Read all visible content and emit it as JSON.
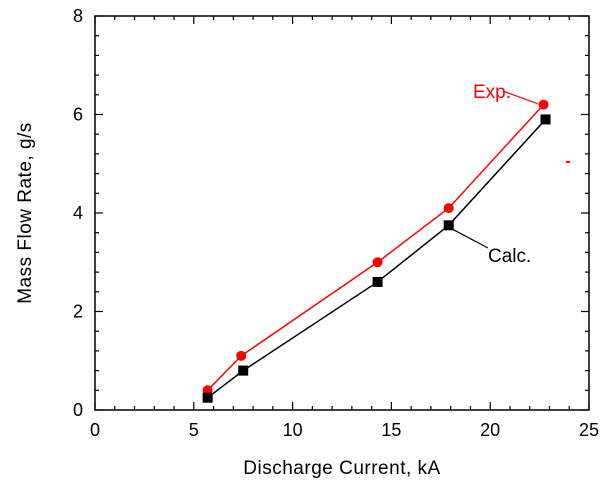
{
  "chart_data": {
    "type": "line",
    "title": "",
    "xlabel": "Discharge Current, kA",
    "ylabel": "Mass Flow Rate, g/s",
    "xlim": [
      0,
      25
    ],
    "ylim": [
      0,
      8
    ],
    "xticks": [
      0,
      5,
      10,
      15,
      20,
      25
    ],
    "yticks": [
      0,
      2,
      4,
      6,
      8
    ],
    "grid": false,
    "legend": "none",
    "series": [
      {
        "name": "Exp.",
        "color": "#ff0000",
        "marker": "circle",
        "x": [
          5.7,
          7.4,
          14.3,
          17.9,
          22.7
        ],
        "y": [
          0.4,
          1.1,
          3.0,
          4.1,
          6.2
        ]
      },
      {
        "name": "Calc.",
        "color": "#000000",
        "marker": "square",
        "x": [
          5.7,
          7.5,
          14.3,
          17.9,
          22.8
        ],
        "y": [
          0.25,
          0.8,
          2.6,
          3.75,
          5.9
        ]
      }
    ],
    "annotations": [
      {
        "text": "Exp.",
        "color": "#ff0000",
        "points_to": [
          22.7,
          6.2
        ]
      },
      {
        "text": "Calc.",
        "color": "#000000",
        "points_to": [
          17.9,
          3.75
        ]
      }
    ]
  }
}
